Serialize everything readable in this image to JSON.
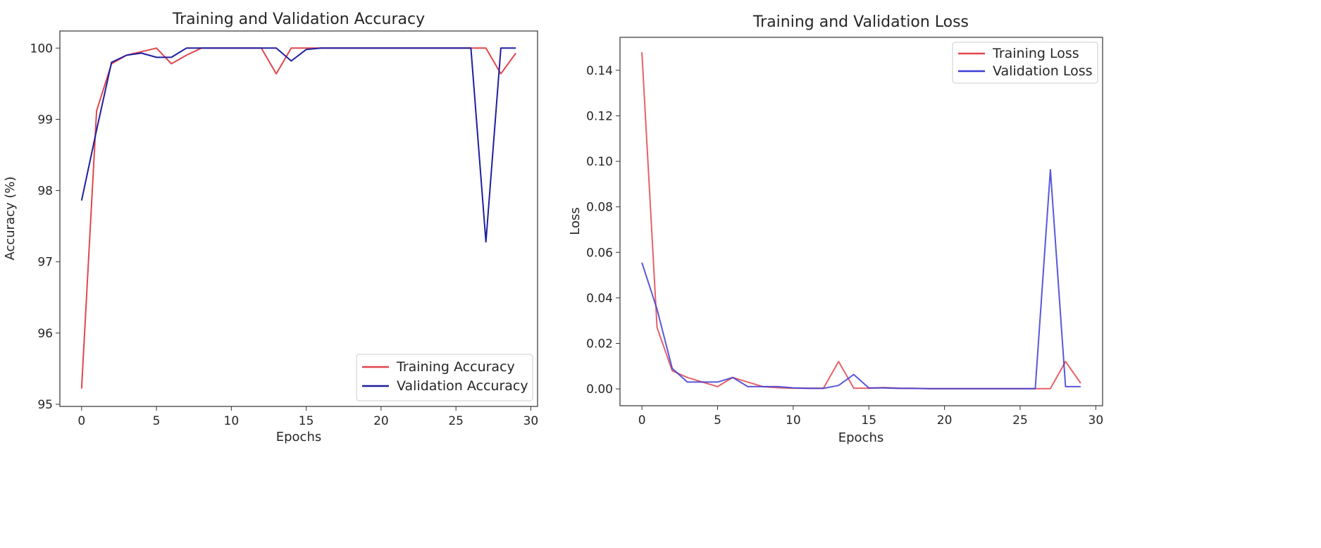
{
  "chart_data": [
    {
      "type": "line",
      "title": "Training and Validation Accuracy",
      "xlabel": "Epochs",
      "ylabel": "Accuracy (%)",
      "xlim": [
        -1.45,
        30.45
      ],
      "ylim": [
        94.97,
        100.24
      ],
      "xticks": [
        0,
        5,
        10,
        15,
        20,
        25,
        30
      ],
      "yticks": [
        95,
        96,
        97,
        98,
        99,
        100
      ],
      "grid": false,
      "legend": "lower right",
      "x": [
        0,
        1,
        2,
        3,
        4,
        5,
        6,
        7,
        8,
        9,
        10,
        11,
        12,
        13,
        14,
        15,
        16,
        17,
        18,
        19,
        20,
        21,
        22,
        23,
        24,
        25,
        26,
        27,
        28,
        29
      ],
      "series": [
        {
          "name": "Training Accuracy",
          "color": "#e0474c",
          "values": [
            95.22,
            99.12,
            99.78,
            99.9,
            99.95,
            100.0,
            99.78,
            99.9,
            100.0,
            100.0,
            100.0,
            100.0,
            100.0,
            99.64,
            100.0,
            100.0,
            100.0,
            100.0,
            100.0,
            100.0,
            100.0,
            100.0,
            100.0,
            100.0,
            100.0,
            100.0,
            100.0,
            100.0,
            99.64,
            99.93
          ]
        },
        {
          "name": "Validation Accuracy",
          "color": "#1f1fa0",
          "values": [
            97.86,
            98.85,
            99.8,
            99.9,
            99.93,
            99.87,
            99.87,
            100.0,
            100.0,
            100.0,
            100.0,
            100.0,
            100.0,
            100.0,
            99.82,
            99.98,
            100.0,
            100.0,
            100.0,
            100.0,
            100.0,
            100.0,
            100.0,
            100.0,
            100.0,
            100.0,
            100.0,
            97.28,
            100.0,
            100.0
          ]
        }
      ]
    },
    {
      "type": "line",
      "title": "Training and Validation Loss",
      "xlabel": "Epochs",
      "ylabel": "Loss",
      "xlim": [
        -1.45,
        30.45
      ],
      "ylim": [
        -0.0074,
        0.1545
      ],
      "xticks": [
        0,
        5,
        10,
        15,
        20,
        25,
        30
      ],
      "yticks": [
        0.0,
        0.02,
        0.04,
        0.06,
        0.08,
        0.1,
        0.12,
        0.14
      ],
      "ytick_labels": [
        "0.00",
        "0.02",
        "0.04",
        "0.06",
        "0.08",
        "0.10",
        "0.12",
        "0.14"
      ],
      "grid": false,
      "legend": "upper right",
      "x": [
        0,
        1,
        2,
        3,
        4,
        5,
        6,
        7,
        8,
        9,
        10,
        11,
        12,
        13,
        14,
        15,
        16,
        17,
        18,
        19,
        20,
        21,
        22,
        23,
        24,
        25,
        26,
        27,
        28,
        29
      ],
      "series": [
        {
          "name": "Training Loss",
          "color": "#e0474c",
          "values": [
            0.148,
            0.027,
            0.008,
            0.005,
            0.003,
            0.001,
            0.005,
            0.003,
            0.001,
            0.0005,
            0.0003,
            0.0003,
            0.0003,
            0.012,
            0.0003,
            0.0003,
            0.0006,
            0.0003,
            0.0002,
            0.0001,
            0.0001,
            0.0001,
            0.0001,
            0.0001,
            0.0001,
            0.0001,
            0.0001,
            0.0001,
            0.012,
            0.0025
          ]
        },
        {
          "name": "Validation Loss",
          "color": "#3b3bd6",
          "values": [
            0.0555,
            0.035,
            0.009,
            0.003,
            0.003,
            0.003,
            0.005,
            0.001,
            0.001,
            0.001,
            0.0004,
            0.0002,
            0.0002,
            0.0015,
            0.0063,
            0.0004,
            0.0004,
            0.0002,
            0.0002,
            0.0001,
            0.0001,
            0.0001,
            0.0001,
            0.0001,
            0.0001,
            0.0001,
            0.0001,
            0.0963,
            0.001,
            0.001
          ]
        }
      ]
    }
  ]
}
